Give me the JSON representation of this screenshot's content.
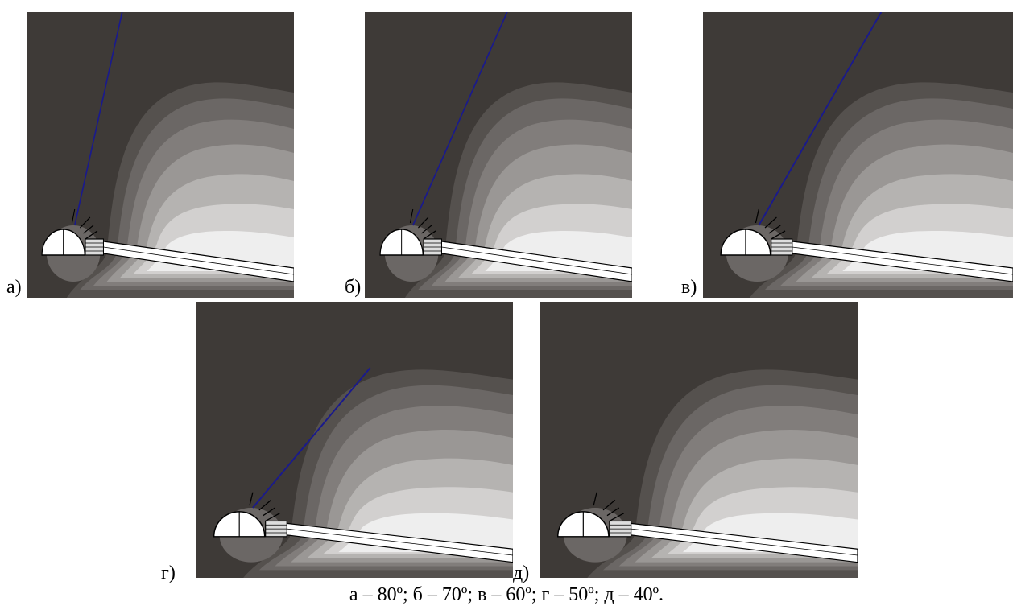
{
  "panels": [
    {
      "label": "а)"
    },
    {
      "label": "б)"
    },
    {
      "label": "в)"
    },
    {
      "label": "г)"
    },
    {
      "label": "д)"
    }
  ],
  "caption": "а – 80º; б – 70º; в – 60º; г – 50º; д – 40º."
}
